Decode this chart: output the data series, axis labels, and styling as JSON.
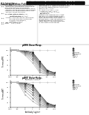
{
  "page_bg": "#ffffff",
  "header_barcode_color": "#111111",
  "graph1_title": "pERK Dose-Resp.",
  "graph2_title": "pAKT Dose-Resp.",
  "ylabel": "% max pERK",
  "xlabel": "Antibody (ug/ml)",
  "graph_bg": "#ffffff",
  "curves1": [
    {
      "vals": [
        100,
        100,
        98,
        92,
        55,
        20,
        10
      ],
      "color": "#111111",
      "label": "C1"
    },
    {
      "vals": [
        100,
        100,
        96,
        88,
        48,
        18,
        8
      ],
      "color": "#333333",
      "label": "C2"
    },
    {
      "vals": [
        100,
        100,
        94,
        84,
        42,
        14,
        6
      ],
      "color": "#555555",
      "label": "C3"
    },
    {
      "vals": [
        100,
        100,
        92,
        80,
        36,
        11,
        5
      ],
      "color": "#666666",
      "label": "C4"
    },
    {
      "vals": [
        100,
        100,
        90,
        75,
        30,
        9,
        4
      ],
      "color": "#777777",
      "label": "Cetuximab"
    },
    {
      "vals": [
        100,
        100,
        88,
        68,
        22,
        7,
        3
      ],
      "color": "#888888",
      "label": "Panitumumab"
    },
    {
      "vals": [
        100,
        100,
        85,
        60,
        15,
        5,
        2
      ],
      "color": "#999999",
      "label": "Sym004"
    },
    {
      "vals": [
        100,
        100,
        80,
        50,
        10,
        4,
        2
      ],
      "color": "#aaaaaa",
      "label": "Neg ctrl"
    },
    {
      "vals": [
        100,
        100,
        100,
        100,
        100,
        100,
        100
      ],
      "color": "#cccccc",
      "label": "No ab"
    }
  ],
  "curves2": [
    {
      "vals": [
        100,
        100,
        98,
        90,
        52,
        18,
        8
      ],
      "color": "#111111",
      "label": "C1"
    },
    {
      "vals": [
        100,
        100,
        95,
        85,
        45,
        15,
        6
      ],
      "color": "#333333",
      "label": "C2"
    },
    {
      "vals": [
        100,
        100,
        92,
        78,
        38,
        12,
        5
      ],
      "color": "#555555",
      "label": "C3"
    },
    {
      "vals": [
        100,
        100,
        88,
        70,
        30,
        10,
        4
      ],
      "color": "#666666",
      "label": "C4"
    },
    {
      "vals": [
        100,
        100,
        82,
        60,
        22,
        8,
        3
      ],
      "color": "#777777",
      "label": "Cetuximab"
    },
    {
      "vals": [
        100,
        100,
        75,
        50,
        15,
        6,
        2
      ],
      "color": "#888888",
      "label": "Panitumumab"
    },
    {
      "vals": [
        100,
        100,
        65,
        38,
        10,
        4,
        2
      ],
      "color": "#999999",
      "label": "Sym004"
    },
    {
      "vals": [
        100,
        100,
        52,
        25,
        6,
        3,
        1
      ],
      "color": "#aaaaaa",
      "label": "Neg ctrl"
    },
    {
      "vals": [
        100,
        100,
        100,
        100,
        100,
        100,
        100
      ],
      "color": "#cccccc",
      "label": "No ab"
    }
  ],
  "x_ticks": [
    0,
    1,
    2,
    3,
    4,
    5,
    6
  ],
  "x_tick_labels": [
    "0.001",
    "0.01",
    "0.1",
    "1",
    "10",
    "100",
    "1000"
  ],
  "y_ticks": [
    0,
    20,
    40,
    60,
    80,
    100
  ],
  "xlim": [
    0,
    6
  ],
  "ylim": [
    0,
    110
  ]
}
